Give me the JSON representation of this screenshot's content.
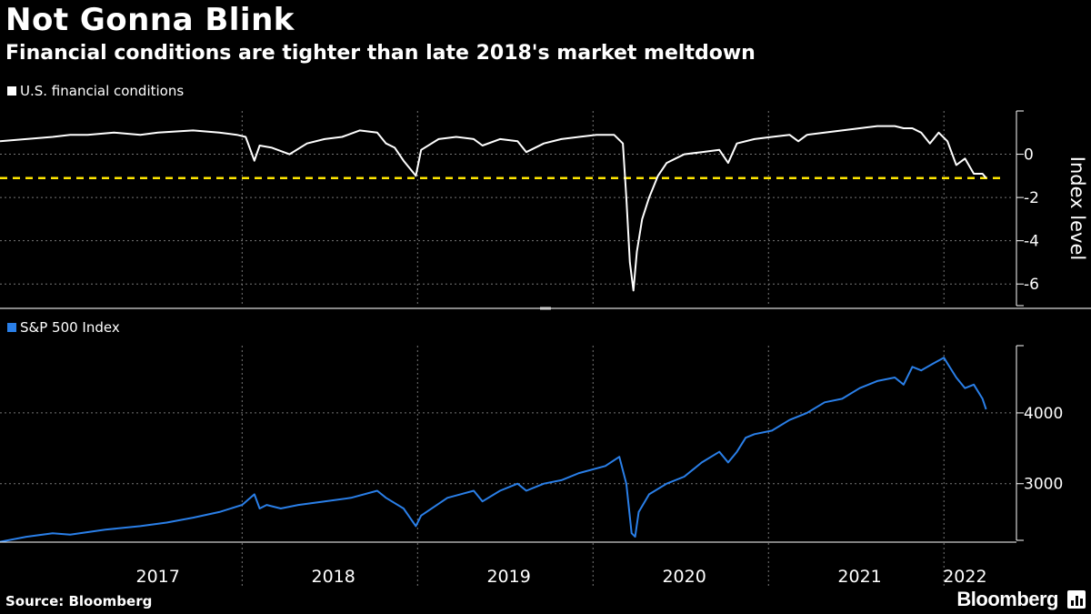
{
  "header": {
    "title": "Not Gonna Blink",
    "subtitle": "Financial conditions are tighter than late 2018's market meltdown"
  },
  "footer": {
    "source": "Source: Bloomberg",
    "brand": "Bloomberg",
    "brand_icon": "bloomberg-chart-icon"
  },
  "colors": {
    "background": "#000000",
    "fci_line": "#ffffff",
    "spx_line": "#2a7fe8",
    "reference_line": "#ffe700",
    "grid": "#777777"
  },
  "chart_data": [
    {
      "type": "line",
      "legend": "U.S. financial conditions",
      "ylabel": "Index level",
      "ylim": [
        -7,
        2
      ],
      "yticks": [
        0,
        -2,
        -4,
        -6
      ],
      "ytick_labels": [
        "0",
        "-2",
        "-4",
        "-6"
      ],
      "reference_line": {
        "value": -1.1,
        "style": "dashed",
        "color": "#ffe700"
      },
      "series": [
        {
          "name": "U.S. financial conditions",
          "x": [
            2016.6,
            2016.75,
            2016.9,
            2017.0,
            2017.1,
            2017.25,
            2017.4,
            2017.5,
            2017.7,
            2017.85,
            2017.95,
            2018.0,
            2018.05,
            2018.08,
            2018.15,
            2018.25,
            2018.35,
            2018.45,
            2018.55,
            2018.65,
            2018.75,
            2018.8,
            2018.85,
            2018.9,
            2018.97,
            2019.0,
            2019.1,
            2019.2,
            2019.3,
            2019.35,
            2019.45,
            2019.55,
            2019.6,
            2019.7,
            2019.8,
            2019.9,
            2020.0,
            2020.1,
            2020.15,
            2020.17,
            2020.19,
            2020.21,
            2020.23,
            2020.26,
            2020.3,
            2020.35,
            2020.4,
            2020.45,
            2020.5,
            2020.6,
            2020.7,
            2020.75,
            2020.8,
            2020.9,
            2021.0,
            2021.1,
            2021.15,
            2021.2,
            2021.3,
            2021.4,
            2021.5,
            2021.6,
            2021.7,
            2021.75,
            2021.8,
            2021.85,
            2021.9,
            2021.95,
            2022.0,
            2022.05,
            2022.1,
            2022.15,
            2022.2,
            2022.22
          ],
          "values": [
            0.6,
            0.7,
            0.8,
            0.9,
            0.9,
            1.0,
            0.9,
            1.0,
            1.1,
            1.0,
            0.9,
            0.8,
            -0.3,
            0.4,
            0.3,
            0.0,
            0.5,
            0.7,
            0.8,
            1.1,
            1.0,
            0.5,
            0.3,
            -0.3,
            -1.0,
            0.2,
            0.7,
            0.8,
            0.7,
            0.4,
            0.7,
            0.6,
            0.1,
            0.5,
            0.7,
            0.8,
            0.9,
            0.9,
            0.5,
            -2.0,
            -5.0,
            -6.3,
            -4.5,
            -3.0,
            -2.0,
            -1.0,
            -0.4,
            -0.2,
            0.0,
            0.1,
            0.2,
            -0.4,
            0.5,
            0.7,
            0.8,
            0.9,
            0.6,
            0.9,
            1.0,
            1.1,
            1.2,
            1.3,
            1.3,
            1.2,
            1.2,
            1.0,
            0.5,
            1.0,
            0.6,
            -0.5,
            -0.2,
            -0.9,
            -0.9,
            -1.1
          ]
        }
      ]
    },
    {
      "type": "line",
      "legend": "S&P 500 Index",
      "ylabel": "",
      "ylim": [
        2200,
        4950
      ],
      "yticks": [
        3000,
        4000
      ],
      "ytick_labels": [
        "3000",
        "4000"
      ],
      "series": [
        {
          "name": "S&P 500 Index",
          "x": [
            2016.6,
            2016.75,
            2016.9,
            2017.0,
            2017.2,
            2017.4,
            2017.55,
            2017.7,
            2017.85,
            2017.98,
            2018.05,
            2018.08,
            2018.12,
            2018.2,
            2018.3,
            2018.45,
            2018.6,
            2018.75,
            2018.8,
            2018.9,
            2018.97,
            2019.0,
            2019.15,
            2019.3,
            2019.35,
            2019.45,
            2019.55,
            2019.6,
            2019.7,
            2019.8,
            2019.9,
            2020.05,
            2020.13,
            2020.17,
            2020.2,
            2020.22,
            2020.24,
            2020.3,
            2020.4,
            2020.5,
            2020.6,
            2020.7,
            2020.75,
            2020.8,
            2020.85,
            2020.9,
            2021.0,
            2021.1,
            2021.2,
            2021.3,
            2021.4,
            2021.5,
            2021.6,
            2021.7,
            2021.75,
            2021.8,
            2021.85,
            2021.92,
            2021.98,
            2022.0,
            2022.05,
            2022.1,
            2022.15,
            2022.2,
            2022.22
          ],
          "values": [
            2180,
            2250,
            2300,
            2280,
            2350,
            2400,
            2450,
            2520,
            2600,
            2700,
            2850,
            2650,
            2700,
            2650,
            2700,
            2750,
            2800,
            2900,
            2800,
            2650,
            2400,
            2550,
            2800,
            2900,
            2750,
            2900,
            3000,
            2900,
            3000,
            3050,
            3150,
            3250,
            3380,
            3000,
            2300,
            2250,
            2600,
            2850,
            3000,
            3100,
            3300,
            3450,
            3300,
            3450,
            3650,
            3700,
            3750,
            3900,
            4000,
            4150,
            4200,
            4350,
            4450,
            4500,
            4400,
            4650,
            4600,
            4700,
            4780,
            4700,
            4500,
            4350,
            4400,
            4200,
            4050
          ]
        }
      ]
    }
  ],
  "x_axis": {
    "years": [
      "2017",
      "2018",
      "2019",
      "2020",
      "2021",
      "2022"
    ],
    "range": [
      2016.6,
      2022.3
    ]
  }
}
